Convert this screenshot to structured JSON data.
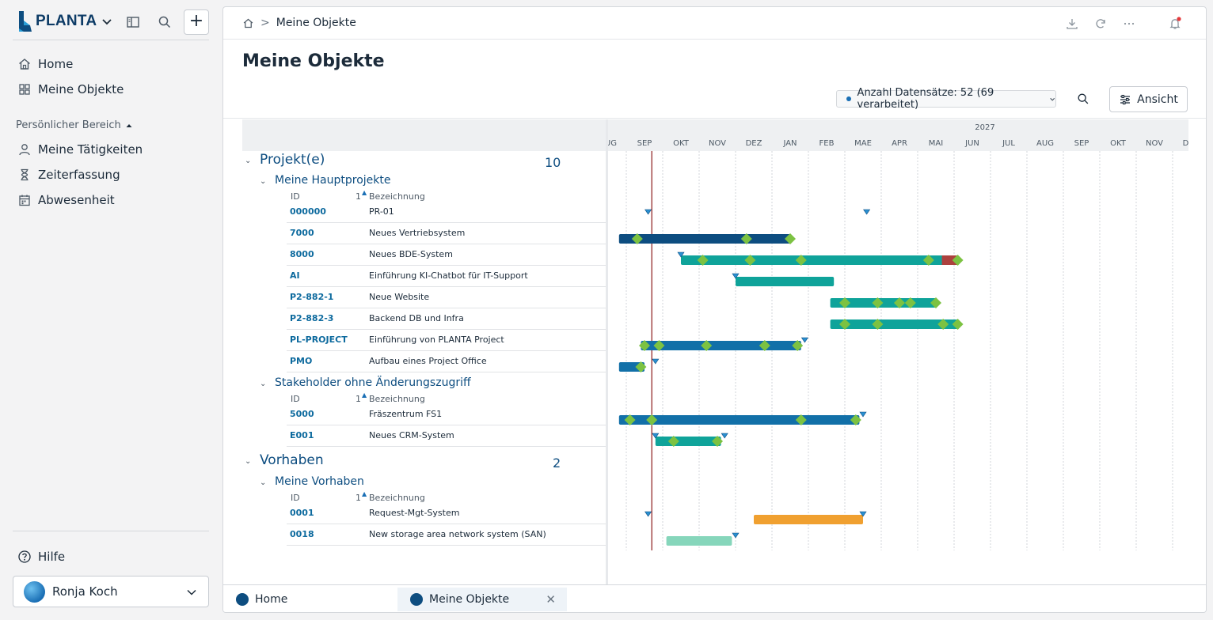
{
  "app": {
    "brand": "PLANTA",
    "user_name": "Ronja Koch"
  },
  "sidebar": {
    "items": [
      {
        "label": "Home"
      },
      {
        "label": "Meine Objekte"
      }
    ],
    "section_label": "Persönlicher Bereich",
    "section_items": [
      {
        "label": "Meine Tätigkeiten"
      },
      {
        "label": "Zeiterfassung"
      },
      {
        "label": "Abwesenheit"
      }
    ],
    "help_label": "Hilfe"
  },
  "header": {
    "breadcrumb_current": "Meine Objekte",
    "page_title": "Meine Objekte",
    "records_label": "Anzahl Datensätze: 52 (69 verarbeitet)",
    "view_button": "Ansicht"
  },
  "grid": {
    "col_id": "ID",
    "col_sort": "1",
    "col_name": "Bezeichnung",
    "groups": [
      {
        "title": "Projekt(e)",
        "count": "10",
        "subgroups": [
          {
            "title": "Meine Hauptprojekte",
            "rows": [
              {
                "id": "000000",
                "name": "PR-01"
              },
              {
                "id": "7000",
                "name": "Neues Vertriebsystem"
              },
              {
                "id": "8000",
                "name": "Neues BDE-System"
              },
              {
                "id": "AI",
                "name": "Einführung KI-Chatbot für IT-Support"
              },
              {
                "id": "P2-882-1",
                "name": "Neue Website"
              },
              {
                "id": "P2-882-3",
                "name": "Backend DB und Infra"
              },
              {
                "id": "PL-PROJECT",
                "name": "Einführung von PLANTA Project"
              },
              {
                "id": "PMO",
                "name": "Aufbau eines Project Office"
              }
            ]
          },
          {
            "title": "Stakeholder ohne Änderungszugriff",
            "rows": [
              {
                "id": "5000",
                "name": "Fräszentrum FS1"
              },
              {
                "id": "E001",
                "name": "Neues CRM-System"
              }
            ]
          }
        ]
      },
      {
        "title": "Vorhaben",
        "count": "2",
        "subgroups": [
          {
            "title": "Meine Vorhaben",
            "rows": [
              {
                "id": "0001",
                "name": "Request-Mgt-System"
              },
              {
                "id": "0018",
                "name": "New storage area network system (SAN)"
              }
            ]
          }
        ]
      }
    ]
  },
  "gantt": {
    "year_label": "2027",
    "months": [
      "AUG",
      "SEP",
      "OKT",
      "NOV",
      "DEZ",
      "JAN",
      "FEB",
      "MAE",
      "APR",
      "MAI",
      "JUN",
      "JUL",
      "AUG",
      "SEP",
      "OKT",
      "NOV",
      "DEZ"
    ],
    "month_start_index": 0,
    "today_month": 1.2,
    "colors": {
      "dark_blue": "#0d4d80",
      "blue": "#1270a8",
      "teal": "#0fa39a",
      "orange": "#f0a030",
      "mint": "#86d6bb",
      "red": "#c8302e",
      "milestone": "#7cc242",
      "triangle": "#2a8fd0",
      "today_line": "#8b1a1a"
    },
    "rows": [
      {
        "bar": null,
        "triangles": [
          1.1,
          7.1
        ],
        "diamonds": []
      },
      {
        "bar": {
          "start": 0.3,
          "end": 5.0,
          "color": "dark_blue"
        },
        "triangles": [],
        "diamonds": [
          0.8,
          3.8,
          5.0
        ]
      },
      {
        "bar": {
          "start": 2.0,
          "end": 9.6,
          "color": "teal",
          "tail": "red"
        },
        "triangles": [
          2.0
        ],
        "diamonds": [
          2.6,
          3.9,
          5.3,
          8.8,
          9.6
        ]
      },
      {
        "bar": {
          "start": 3.5,
          "end": 6.2,
          "color": "teal"
        },
        "triangles": [
          3.5
        ],
        "diamonds": []
      },
      {
        "bar": {
          "start": 6.1,
          "end": 9.0,
          "color": "teal"
        },
        "triangles": [],
        "diamonds": [
          6.5,
          7.4,
          8.0,
          8.3,
          9.0
        ]
      },
      {
        "bar": {
          "start": 6.1,
          "end": 9.6,
          "color": "teal"
        },
        "triangles": [],
        "diamonds": [
          6.5,
          7.4,
          9.2,
          9.6
        ]
      },
      {
        "bar": {
          "start": 0.9,
          "end": 5.3,
          "color": "blue"
        },
        "triangles": [
          5.4
        ],
        "diamonds": [
          1.0,
          1.4,
          2.7,
          4.3,
          5.2
        ]
      },
      {
        "bar": {
          "start": 0.3,
          "end": 1.0,
          "color": "blue"
        },
        "triangles": [
          1.3
        ],
        "diamonds": [
          0.9
        ]
      },
      {
        "bar": {
          "start": 0.3,
          "end": 6.9,
          "color": "blue"
        },
        "triangles": [
          7.0
        ],
        "diamonds": [
          0.6,
          1.2,
          5.3,
          6.8
        ]
      },
      {
        "bar": {
          "start": 1.3,
          "end": 3.1,
          "color": "teal"
        },
        "triangles": [
          1.3,
          3.2
        ],
        "diamonds": [
          1.8,
          3.0
        ]
      },
      {
        "bar": {
          "start": 4.0,
          "end": 7.0,
          "color": "orange"
        },
        "triangles": [
          1.1,
          7.0
        ],
        "diamonds": []
      },
      {
        "bar": {
          "start": 1.6,
          "end": 3.4,
          "color": "mint"
        },
        "triangles": [
          3.5
        ],
        "diamonds": []
      }
    ]
  }
}
